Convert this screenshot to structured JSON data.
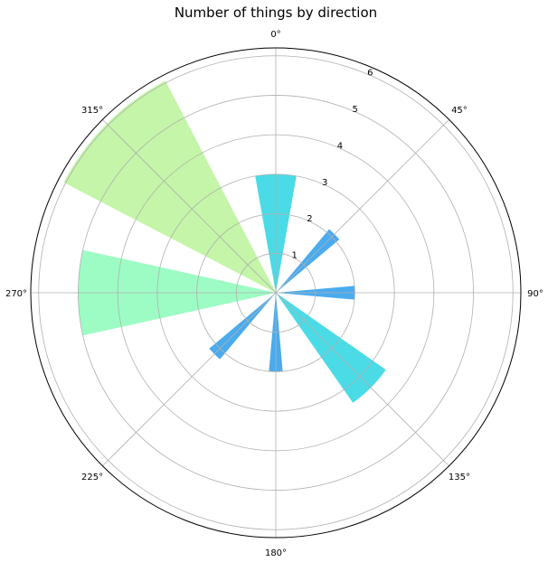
{
  "chart_data": {
    "type": "bar",
    "projection": "polar",
    "title": "Number of things by direction",
    "theta_zero": "north",
    "theta_direction": "clockwise",
    "angle_ticks": [
      "0°",
      "45°",
      "90°",
      "135°",
      "180°",
      "225°",
      "270°",
      "315°"
    ],
    "radial_ticks": [
      "1",
      "2",
      "3",
      "4",
      "5",
      "6"
    ],
    "rlim": [
      0,
      6.2
    ],
    "grid": true,
    "bars": [
      {
        "theta_deg": 0,
        "width_deg": 20,
        "value": 3.0,
        "color": "#4adbe6"
      },
      {
        "theta_deg": 45,
        "width_deg": 10,
        "value": 2.1,
        "color": "#4aabee"
      },
      {
        "theta_deg": 90,
        "width_deg": 10,
        "value": 2.0,
        "color": "#4aabee"
      },
      {
        "theta_deg": 135,
        "width_deg": 20,
        "value": 3.4,
        "color": "#4adbe6"
      },
      {
        "theta_deg": 180,
        "width_deg": 10,
        "value": 2.0,
        "color": "#4aabee"
      },
      {
        "theta_deg": 225,
        "width_deg": 10,
        "value": 2.2,
        "color": "#4aabee"
      },
      {
        "theta_deg": 270,
        "width_deg": 25,
        "value": 5.0,
        "color": "#9dfcc4"
      },
      {
        "theta_deg": 315,
        "width_deg": 35,
        "value": 6.05,
        "color": "#c4f5a8"
      }
    ]
  }
}
